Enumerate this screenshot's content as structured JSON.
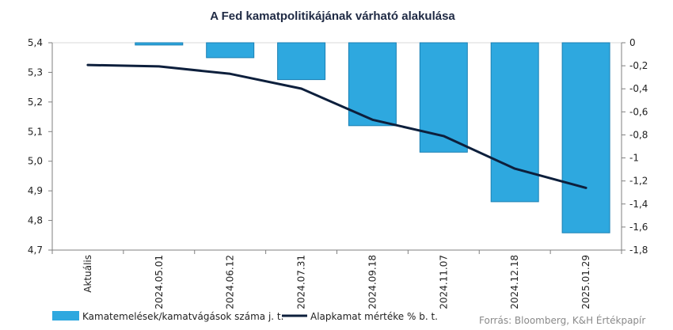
{
  "chart_data": {
    "type": "bar+line",
    "title": "A Fed kamatpolitikájának várható alakulása",
    "categories": [
      "Aktuális",
      "2024.05.01",
      "2024.06.12",
      "2024.07.31",
      "2024.09.18",
      "2024.11.07",
      "2024.12.18",
      "2025.01.29"
    ],
    "series": [
      {
        "name": "Kamatemelések/kamatvágások száma j. t.",
        "type": "bar",
        "axis": "right",
        "color": "#2ea8df",
        "values": [
          0,
          -0.02,
          -0.13,
          -0.32,
          -0.72,
          -0.95,
          -1.38,
          -1.65
        ]
      },
      {
        "name": "Alapkamat mértéke % b. t.",
        "type": "line",
        "axis": "left",
        "color": "#0d1f3c",
        "values": [
          5.325,
          5.32,
          5.295,
          5.245,
          5.14,
          5.085,
          4.975,
          4.91
        ]
      }
    ],
    "left_axis": {
      "min": 4.7,
      "max": 5.4,
      "ticks": [
        "5,4",
        "5,3",
        "5,2",
        "5,1",
        "5,0",
        "4,9",
        "4,8",
        "4,7"
      ]
    },
    "right_axis": {
      "min": -1.8,
      "max": 0,
      "ticks": [
        "0",
        "-0,2",
        "-0,4",
        "-0,6",
        "-0,8",
        "-1",
        "-1,2",
        "-1,4",
        "-1,6",
        "-1,8"
      ]
    },
    "grid": false,
    "legend_position": "bottom-left"
  },
  "source": "Forrás: Bloomberg, K&H Értékpapír"
}
